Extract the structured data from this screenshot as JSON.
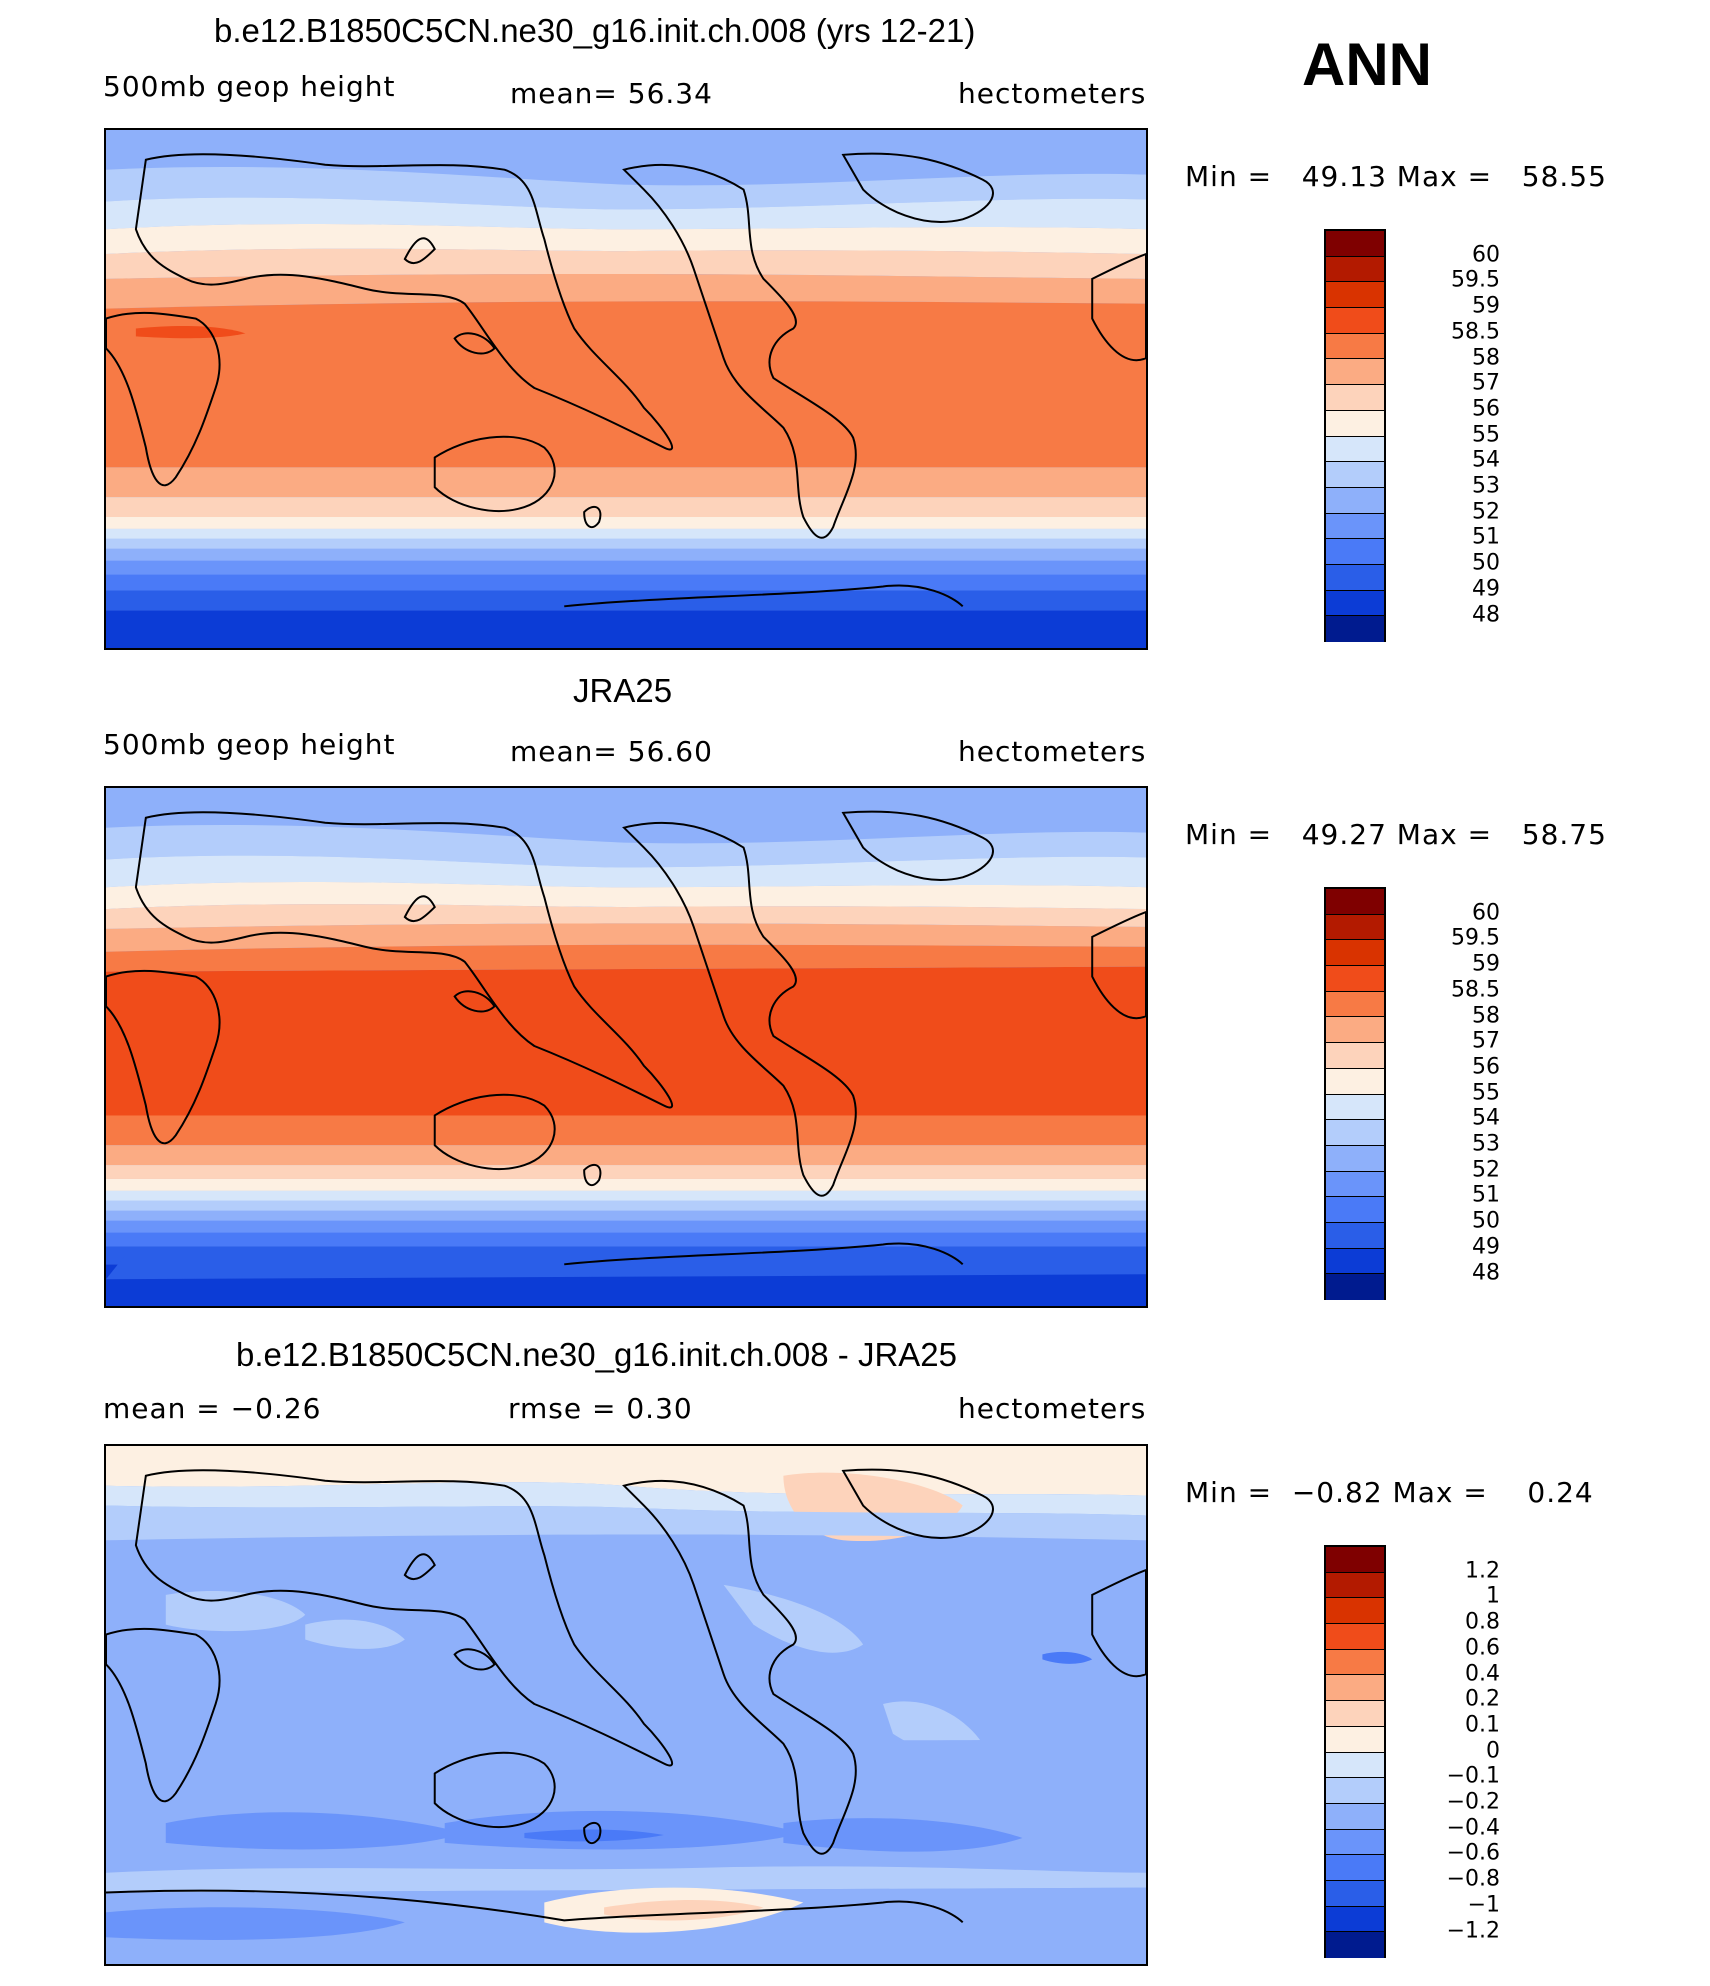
{
  "season": "ANN",
  "panels": [
    {
      "title": "b.e12.B1850C5CN.ne30_g16.init.ch.008 (yrs 12-21)",
      "left_label": "500mb geop height",
      "center_label": "mean=  56.34",
      "right_label": "hectometers",
      "minmax": "Min =   49.13 Max =   58.55",
      "colorbar_labels": [
        "60",
        "59.5",
        "59",
        "58.5",
        "58",
        "57",
        "56",
        "55",
        "54",
        "53",
        "52",
        "51",
        "50",
        "49",
        "48"
      ]
    },
    {
      "title": "JRA25",
      "left_label": "500mb geop height",
      "center_label": "mean=  56.60",
      "right_label": "hectometers",
      "minmax": "Min =   49.27 Max =   58.75",
      "colorbar_labels": [
        "60",
        "59.5",
        "59",
        "58.5",
        "58",
        "57",
        "56",
        "55",
        "54",
        "53",
        "52",
        "51",
        "50",
        "49",
        "48"
      ]
    },
    {
      "title": "b.e12.B1850C5CN.ne30_g16.init.ch.008 - JRA25",
      "left_label": "mean =  −0.26",
      "center_label": "rmse =   0.30",
      "right_label": "hectometers",
      "minmax": "Min =  −0.82 Max =    0.24",
      "colorbar_labels": [
        "1.2",
        "1",
        "0.8",
        "0.6",
        "0.4",
        "0.2",
        "0.1",
        "0",
        "−0.1",
        "−0.2",
        "−0.4",
        "−0.6",
        "−0.8",
        "−1",
        "−1.2"
      ]
    }
  ],
  "colors": {
    "palette": [
      "#7f0000",
      "#b31a00",
      "#d93300",
      "#f04c1a",
      "#f77a45",
      "#fbab83",
      "#fdd3bb",
      "#fdf0e2",
      "#d6e6fa",
      "#b3cdfb",
      "#8eb0fa",
      "#6a94fa",
      "#4a7af7",
      "#2a5ee8",
      "#0c3cd6",
      "#001b8f"
    ]
  }
}
